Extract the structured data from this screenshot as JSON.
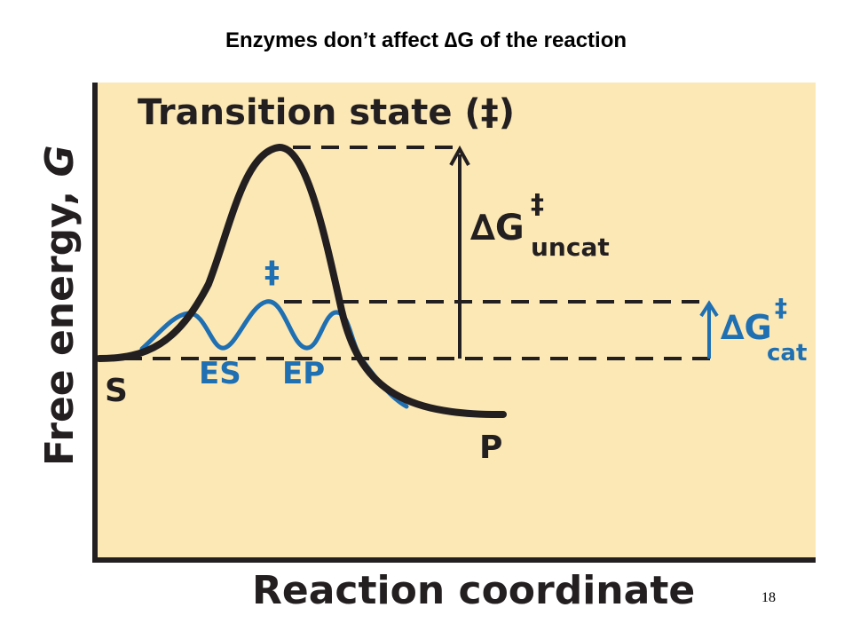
{
  "slide": {
    "title": "Enzymes don’t affect ∆G of the reaction",
    "page_number": "18"
  },
  "diagram": {
    "y_axis_label": "Free energy, ",
    "y_axis_label_italic": "G",
    "x_axis_label": "Reaction coordinate",
    "transition_state_label": "Transition state (‡)",
    "catalyzed_ts_label": "‡",
    "substrate_label": "S",
    "product_label": "P",
    "es_label": "ES",
    "ep_label": "EP",
    "dg_uncat": {
      "delta_g": "∆G",
      "superscript": "‡",
      "subscript": "uncat"
    },
    "dg_cat": {
      "delta_g": "∆G",
      "superscript": "‡",
      "subscript": "cat"
    },
    "colors": {
      "background": "#FBE8B5",
      "uncatalyzed_curve": "#231F20",
      "catalyzed_curve": "#1F6FB3",
      "text_dark": "#231F20"
    }
  }
}
